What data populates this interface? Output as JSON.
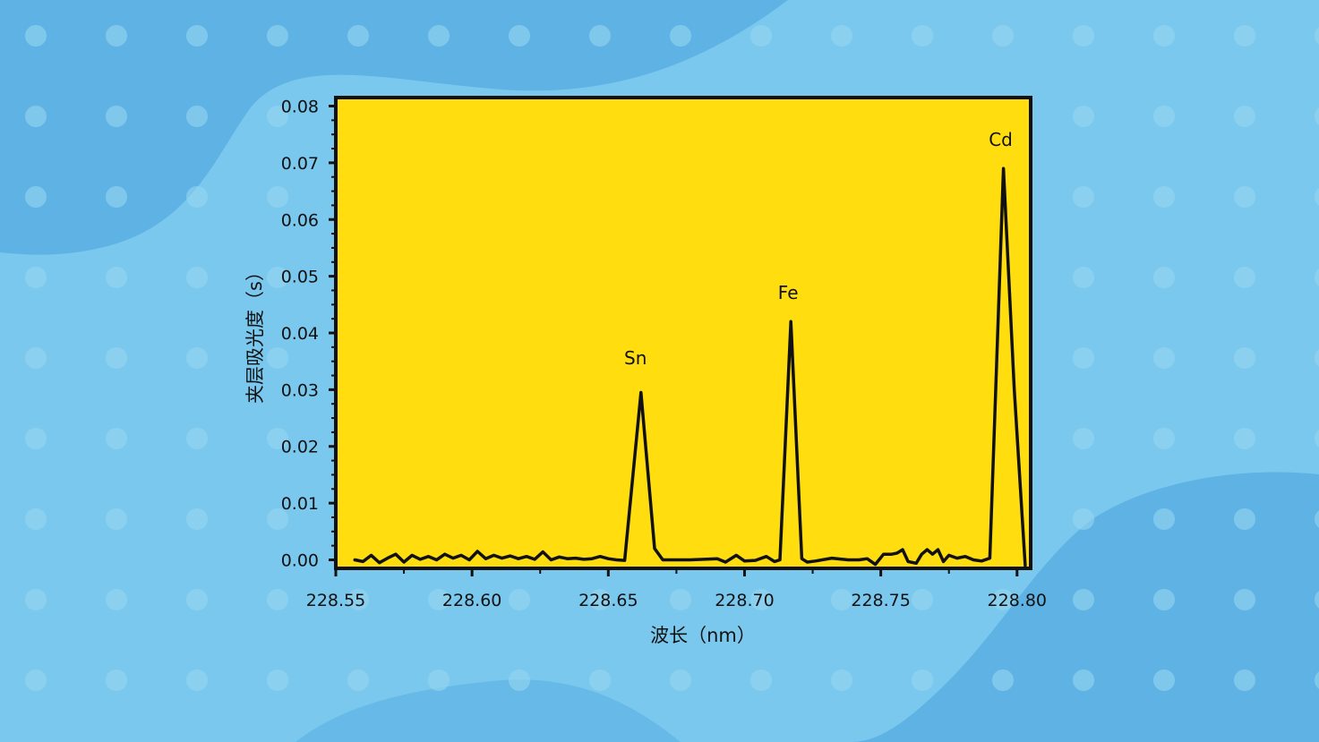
{
  "colors": {
    "background": "#7ac8ee",
    "background_shape": "#5fb3e4",
    "dot": "#9ad6f2",
    "plot_fill": "#ffdd0f",
    "line": "#111111"
  },
  "chart_data": {
    "type": "line",
    "title": "",
    "xlabel": "波长（nm）",
    "ylabel": "夹层吸光度（s）",
    "xlim": [
      228.55,
      228.805
    ],
    "ylim": [
      -0.0015,
      0.0815
    ],
    "grid": false,
    "x_ticks": [
      228.55,
      228.6,
      228.65,
      228.7,
      228.75,
      228.8
    ],
    "x_tick_labels": [
      "228.55",
      "228.60",
      "228.65",
      "228.70",
      "228.75",
      "228.80"
    ],
    "y_ticks": [
      0.0,
      0.01,
      0.02,
      0.03,
      0.04,
      0.05,
      0.06,
      0.07,
      0.08
    ],
    "y_tick_labels": [
      "0.00",
      "0.01",
      "0.02",
      "0.03",
      "0.04",
      "0.05",
      "0.06",
      "0.07",
      "0.08"
    ],
    "series": [
      {
        "x": [
          228.557,
          228.56,
          228.563,
          228.566,
          228.569,
          228.572,
          228.575,
          228.578,
          228.581,
          228.584,
          228.587,
          228.59,
          228.593,
          228.596,
          228.599,
          228.602,
          228.605,
          228.608,
          228.611,
          228.614,
          228.617,
          228.62,
          228.623,
          228.626,
          228.629,
          228.632,
          228.635,
          228.638,
          228.641,
          228.644,
          228.647,
          228.65,
          228.653,
          228.656,
          228.662,
          228.667,
          228.67,
          228.68,
          228.69,
          228.693,
          228.697,
          228.7,
          228.704,
          228.708,
          228.711,
          228.713,
          228.717,
          228.721,
          228.723,
          228.726,
          228.732,
          228.738,
          228.742,
          228.745,
          228.748,
          228.751,
          228.754,
          228.756,
          228.758,
          228.76,
          228.763,
          228.765,
          228.767,
          228.769,
          228.771,
          228.773,
          228.775,
          228.778,
          228.781,
          228.784,
          228.787,
          228.79,
          228.795,
          228.799,
          228.803
        ],
        "y": [
          0.0,
          -0.0003,
          0.0008,
          -0.0005,
          0.0003,
          0.001,
          -0.0004,
          0.0008,
          0.0001,
          0.0006,
          0.0,
          0.001,
          0.0003,
          0.0008,
          0.0,
          0.0015,
          0.0002,
          0.0008,
          0.0003,
          0.0007,
          0.0002,
          0.0006,
          0.0001,
          0.0014,
          0.0,
          0.0005,
          0.0002,
          0.0003,
          0.0001,
          0.0002,
          0.0006,
          0.0002,
          0.0,
          -0.0001,
          0.0295,
          0.002,
          0.0,
          0.0,
          0.0002,
          -0.0004,
          0.0008,
          -0.0002,
          -0.0001,
          0.0006,
          -0.0003,
          0.0,
          0.042,
          0.0002,
          -0.0004,
          -0.0002,
          0.0003,
          0.0,
          0.0,
          0.0002,
          -0.0008,
          0.001,
          0.001,
          0.0012,
          0.0018,
          -0.0003,
          -0.0006,
          0.001,
          0.0018,
          0.001,
          0.0018,
          -0.0003,
          0.0008,
          0.0003,
          0.0006,
          0.0,
          -0.0002,
          0.0003,
          0.069,
          0.03,
          -0.001
        ]
      }
    ],
    "annotations": [
      {
        "text": "Sn",
        "x": 228.66,
        "y": 0.0345
      },
      {
        "text": "Fe",
        "x": 228.716,
        "y": 0.046
      },
      {
        "text": "Cd",
        "x": 228.794,
        "y": 0.073
      }
    ]
  }
}
